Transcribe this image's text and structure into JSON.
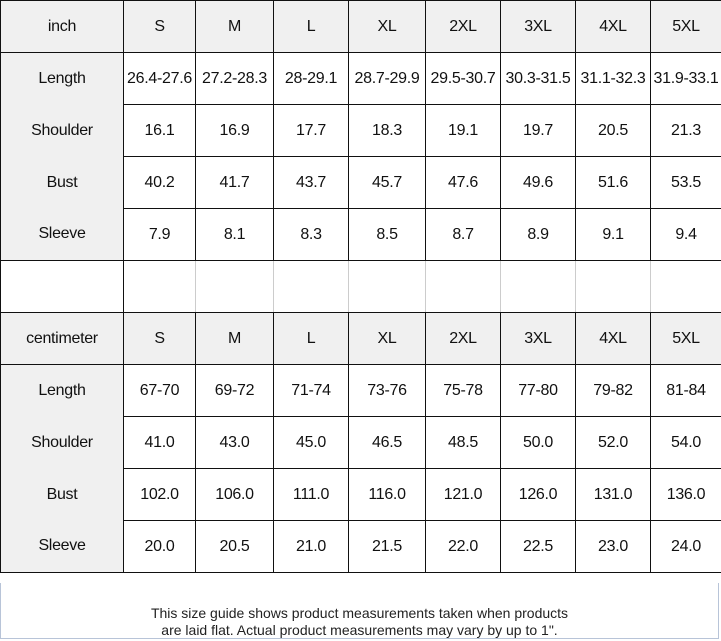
{
  "inch_table": {
    "unit": "inch",
    "sizes": [
      "S",
      "M",
      "L",
      "XL",
      "2XL",
      "3XL",
      "4XL",
      "5XL"
    ],
    "rows": [
      {
        "label": "Length",
        "values": [
          "26.4-27.6",
          "27.2-28.3",
          "28-29.1",
          "28.7-29.9",
          "29.5-30.7",
          "30.3-31.5",
          "31.1-32.3",
          "31.9-33.1"
        ]
      },
      {
        "label": "Shoulder",
        "values": [
          "16.1",
          "16.9",
          "17.7",
          "18.3",
          "19.1",
          "19.7",
          "20.5",
          "21.3"
        ]
      },
      {
        "label": "Bust",
        "values": [
          "40.2",
          "41.7",
          "43.7",
          "45.7",
          "47.6",
          "49.6",
          "51.6",
          "53.5"
        ]
      },
      {
        "label": "Sleeve",
        "values": [
          "7.9",
          "8.1",
          "8.3",
          "8.5",
          "8.7",
          "8.9",
          "9.1",
          "9.4"
        ]
      }
    ]
  },
  "cm_table": {
    "unit": "centimeter",
    "sizes": [
      "S",
      "M",
      "L",
      "XL",
      "2XL",
      "3XL",
      "4XL",
      "5XL"
    ],
    "rows": [
      {
        "label": "Length",
        "values": [
          "67-70",
          "69-72",
          "71-74",
          "73-76",
          "75-78",
          "77-80",
          "79-82",
          "81-84"
        ]
      },
      {
        "label": "Shoulder",
        "values": [
          "41.0",
          "43.0",
          "45.0",
          "46.5",
          "48.5",
          "50.0",
          "52.0",
          "54.0"
        ]
      },
      {
        "label": "Bust",
        "values": [
          "102.0",
          "106.0",
          "111.0",
          "116.0",
          "121.0",
          "126.0",
          "131.0",
          "136.0"
        ]
      },
      {
        "label": "Sleeve",
        "values": [
          "20.0",
          "20.5",
          "21.0",
          "21.5",
          "22.0",
          "22.5",
          "23.0",
          "24.0"
        ]
      }
    ]
  },
  "footer": {
    "line1": "This size guide shows product measurements taken when products",
    "line2": "are laid flat. Actual product measurements may vary by up to 1\"."
  }
}
